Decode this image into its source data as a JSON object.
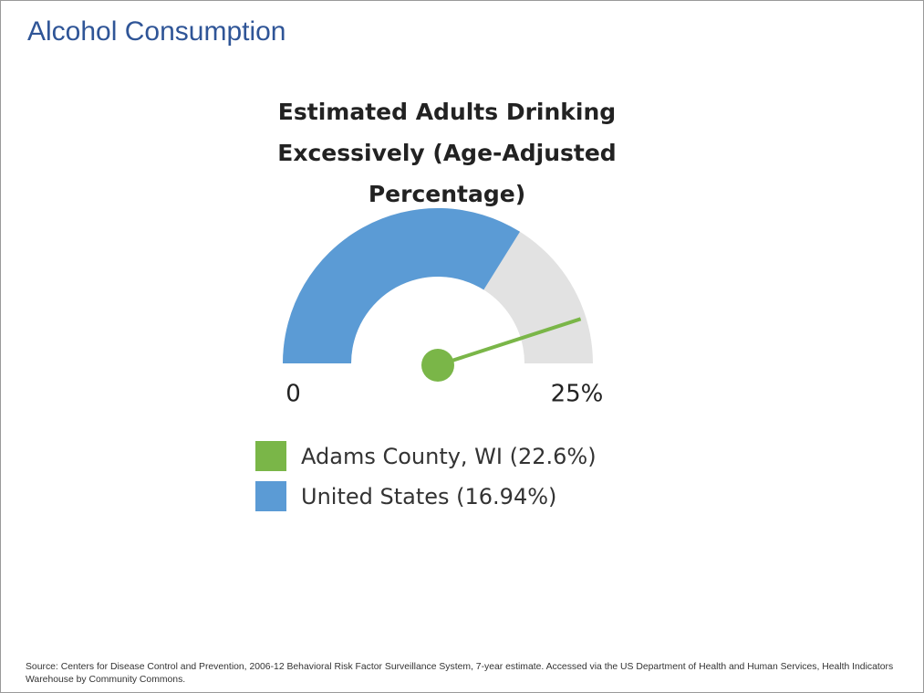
{
  "slide_title": "Alcohol Consumption",
  "chart_data": {
    "type": "gauge",
    "title": "Estimated Adults Drinking Excessively (Age-Adjusted Percentage)",
    "ylim": [
      0,
      25
    ],
    "yticks": [
      0,
      {
        "value": 25,
        "label": "25%"
      }
    ],
    "series": [
      {
        "name": "Adams County, WI (22.6%)",
        "color": "#7ab648",
        "value": 22.6,
        "style": "needle"
      },
      {
        "name": "United States (16.94%)",
        "color": "#5b9bd5",
        "value": 16.94,
        "style": "arc"
      }
    ],
    "track_color": "#e2e2e2"
  },
  "source": "Source: Centers for Disease Control and Prevention, 2006-12 Behavioral Risk Factor Surveillance System, 7-year estimate.  Accessed via the US Department of Health and Human Services, Health Indicators Warehouse by Community Commons."
}
